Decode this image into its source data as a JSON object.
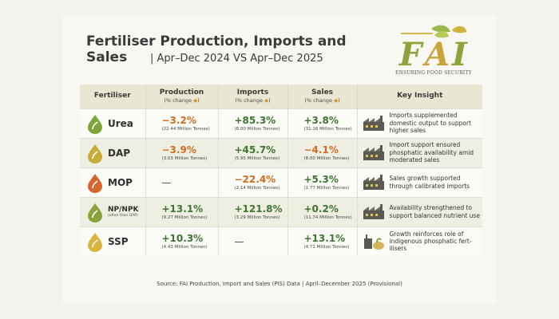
{
  "header": {
    "title": "Fertiliser Production, Imports and Sales",
    "subtitle": "| Apr–Dec 2024 VS Apr–Dec 2025"
  },
  "logo": {
    "tagline": "ENSURING FOOD SECURITY",
    "brand_color": "#8ea33a"
  },
  "table": {
    "columns": [
      {
        "label": "Fertiliser",
        "sub": ""
      },
      {
        "label": "Production",
        "sub": "(% change"
      },
      {
        "label": "Imports",
        "sub": "(% change"
      },
      {
        "label": "Sales",
        "sub": "(% change"
      },
      {
        "label": "Key Insight",
        "sub": ""
      }
    ],
    "rows": [
      {
        "name": "Urea",
        "note": "",
        "production": {
          "pct": "−3.2%",
          "qty": "(22.44 Million Tonnes)",
          "dir": "down"
        },
        "imports": {
          "pct": "+85.3%",
          "qty": "(8.00 Million Tonnes)",
          "dir": "up"
        },
        "sales": {
          "pct": "+3.8%",
          "qty": "(31.16 Million Tonnes)",
          "dir": "up"
        },
        "insight": "Imports supplemented domestic output to support higher sales",
        "icon_color": "#7fa63a"
      },
      {
        "name": "DAP",
        "note": "",
        "production": {
          "pct": "−3.9%",
          "qty": "(3.03 Million Tonnes)",
          "dir": "down"
        },
        "imports": {
          "pct": "+45.7%",
          "qty": "(5.95 Million Tonnes)",
          "dir": "up"
        },
        "sales": {
          "pct": "−4.1%",
          "qty": "(8.00 Million Tonnes)",
          "dir": "down"
        },
        "insight": "Import support ensured phosphatic availability amid moderated sales",
        "icon_color": "#c7ac3a"
      },
      {
        "name": "MOP",
        "note": "",
        "production": {
          "pct": "—",
          "qty": "",
          "dir": "none"
        },
        "imports": {
          "pct": "−22.4%",
          "qty": "(2.14 Million Tonnes)",
          "dir": "down"
        },
        "sales": {
          "pct": "+5.3%",
          "qty": "(1.77 Million Tonnes)",
          "dir": "up"
        },
        "insight": "Sales growth supported through calibrated imports",
        "icon_color": "#d4662e"
      },
      {
        "name": "NP/NPK",
        "note": "(other than DAP)",
        "production": {
          "pct": "+13.1%",
          "qty": "(9.27 Million Tonnes)",
          "dir": "up"
        },
        "imports": {
          "pct": "+121.8%",
          "qty": "(3.29 Million Tonnes)",
          "dir": "up"
        },
        "sales": {
          "pct": "+0.2%",
          "qty": "(11.74 Million Tonnes)",
          "dir": "up"
        },
        "insight": "Availability strengthened to support balanced nutrient use",
        "icon_color": "#8aa23a"
      },
      {
        "name": "SSP",
        "note": "",
        "production": {
          "pct": "+10.3%",
          "qty": "(4.43 Million Tonnes)",
          "dir": "up"
        },
        "imports": {
          "pct": "—",
          "qty": "",
          "dir": "none"
        },
        "sales": {
          "pct": "+13.1%",
          "qty": "(4.71 Million Tonnes)",
          "dir": "up"
        },
        "insight": "Growth reinforces role of indigenous phosphatic fert-ilisers",
        "icon_color": "#d8b53c"
      }
    ]
  },
  "colors": {
    "positive": "#3e7530",
    "negative": "#d26c22",
    "header_bg": "#e9e6d2"
  },
  "footer": {
    "source": "Source: FAI Production, Import and Sales (PIS) Data | April–December 2025 (Provisional)"
  }
}
